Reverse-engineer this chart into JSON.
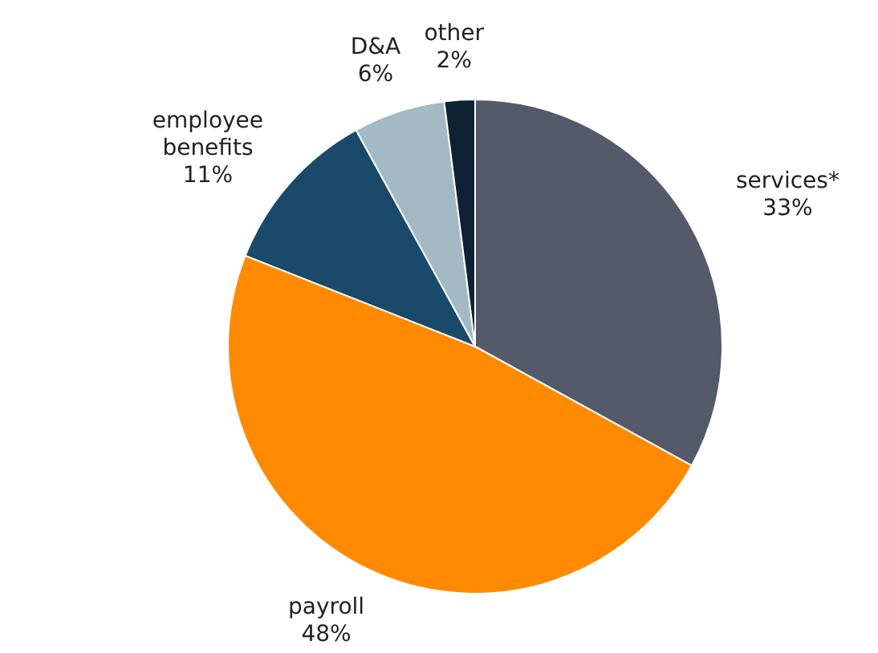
{
  "chart_data": {
    "type": "pie",
    "categories": [
      "services*",
      "payroll",
      "employee benefits",
      "D&A",
      "other"
    ],
    "values": [
      33,
      48,
      11,
      6,
      2
    ],
    "colors": [
      "#555a6a",
      "#ff8a00",
      "#1a4a6b",
      "#a3bac4",
      "#0f2233"
    ],
    "value_labels": [
      "33%",
      "48%",
      "11%",
      "6%",
      "2%"
    ]
  }
}
